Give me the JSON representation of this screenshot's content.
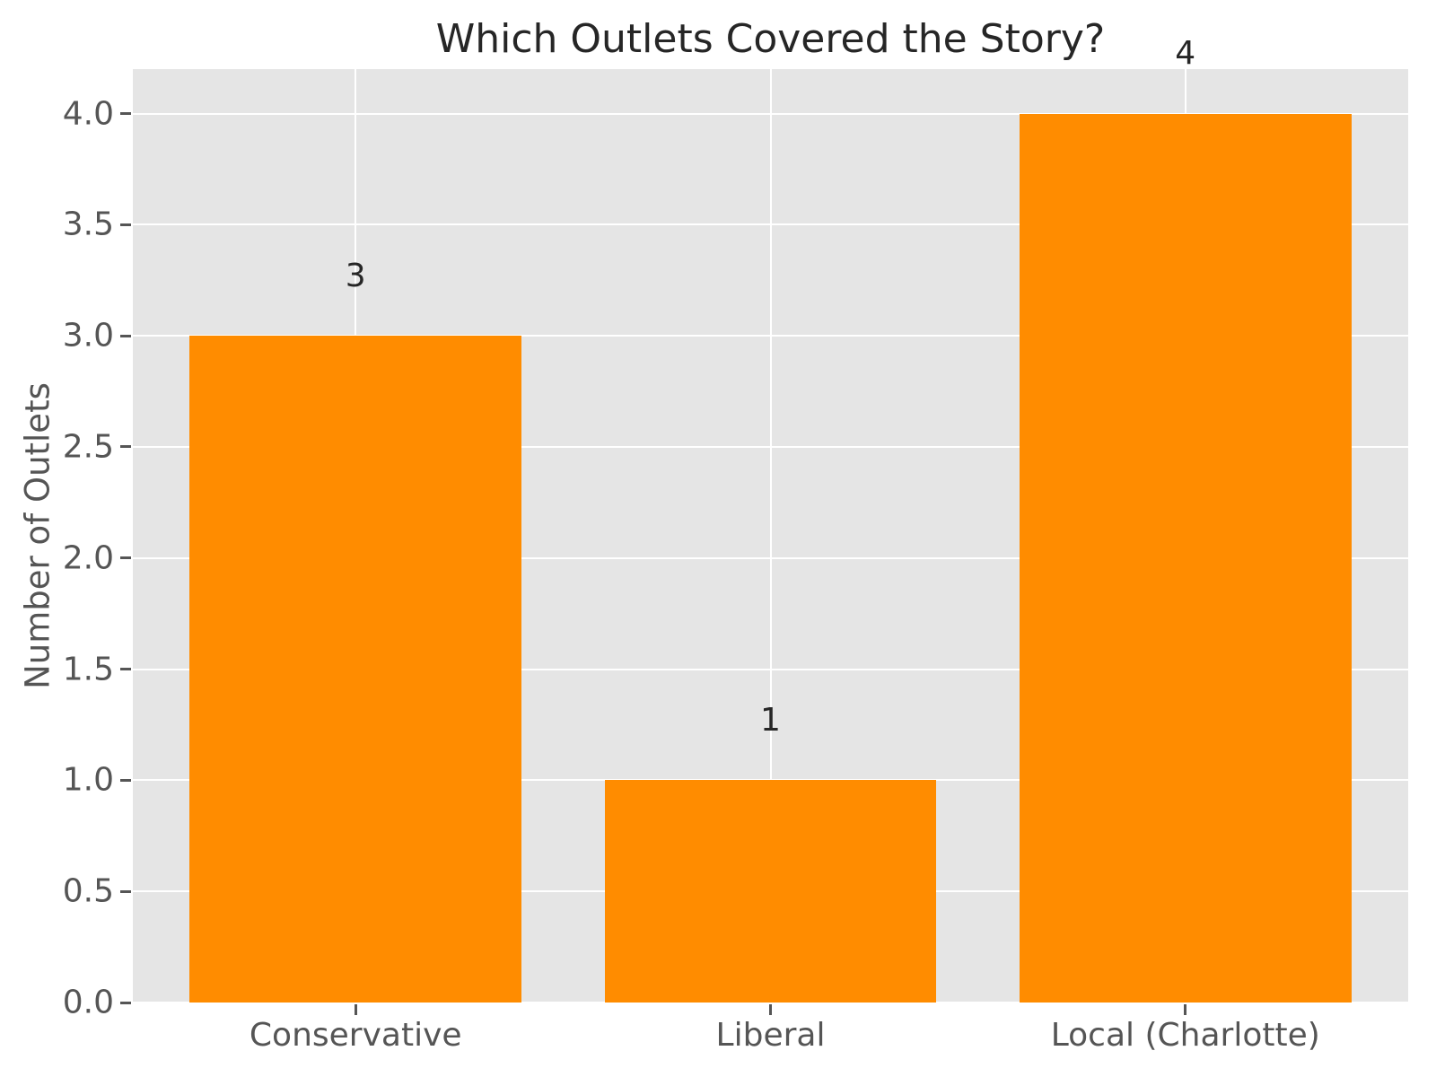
{
  "chart_data": {
    "type": "bar",
    "title": "Which Outlets Covered the Story?",
    "xlabel": "",
    "ylabel": "Number of Outlets",
    "categories": [
      "Conservative",
      "Liberal",
      "Local (Charlotte)"
    ],
    "values": [
      3,
      1,
      4
    ],
    "bar_value_labels": [
      "3",
      "1",
      "4"
    ],
    "ylim": [
      0,
      4.2
    ],
    "yticks": [
      0,
      0.5,
      1,
      1.5,
      2,
      2.5,
      3,
      3.5,
      4
    ],
    "ytick_labels": [
      "0.0",
      "0.5",
      "1.0",
      "1.5",
      "2.0",
      "2.5",
      "3.0",
      "3.5",
      "4.0"
    ],
    "grid": true,
    "legend": false,
    "style": "ggplot",
    "bar_width_fraction": 0.8,
    "colors": {
      "bar": "#FF8C00",
      "plot_background": "#E5E5E5",
      "gridline": "#FFFFFF",
      "tick_text": "#555555",
      "title_text": "#262626",
      "value_label_text": "#262626",
      "figure_background": "#FFFFFF"
    }
  }
}
